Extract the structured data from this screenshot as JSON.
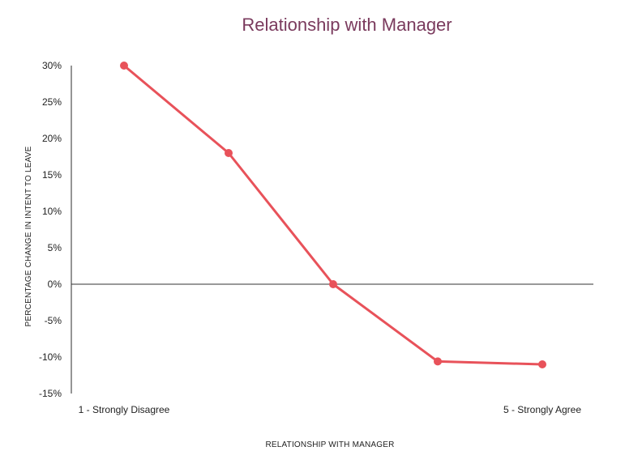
{
  "chart_data": {
    "type": "line",
    "title": "Relationship with Manager",
    "xlabel": "RELATIONSHIP WITH MANAGER",
    "ylabel": "PERCENTAGE CHANGE IN INTENT TO LEAVE",
    "x": [
      1,
      2,
      3,
      4,
      5
    ],
    "x_tick_labels": [
      "1 - Strongly Disagree",
      "",
      "",
      "",
      "5 - Strongly Agree"
    ],
    "series": [
      {
        "values": [
          30,
          18,
          0,
          -10.6,
          -11
        ],
        "color": "#e8525a"
      }
    ],
    "ylim": [
      -15,
      30
    ],
    "y_ticks": [
      30,
      25,
      20,
      15,
      10,
      5,
      0,
      -5,
      -10,
      -15
    ],
    "y_tick_labels": [
      "30%",
      "25%",
      "20%",
      "15%",
      "10%",
      "5%",
      "0%",
      "-5%",
      "-10%",
      "-15%"
    ],
    "grid": false,
    "legend": "none",
    "zero_line": true
  },
  "colors": {
    "title": "#7a3a5d",
    "series": "#e8525a",
    "axis": "#2b2b2b"
  }
}
